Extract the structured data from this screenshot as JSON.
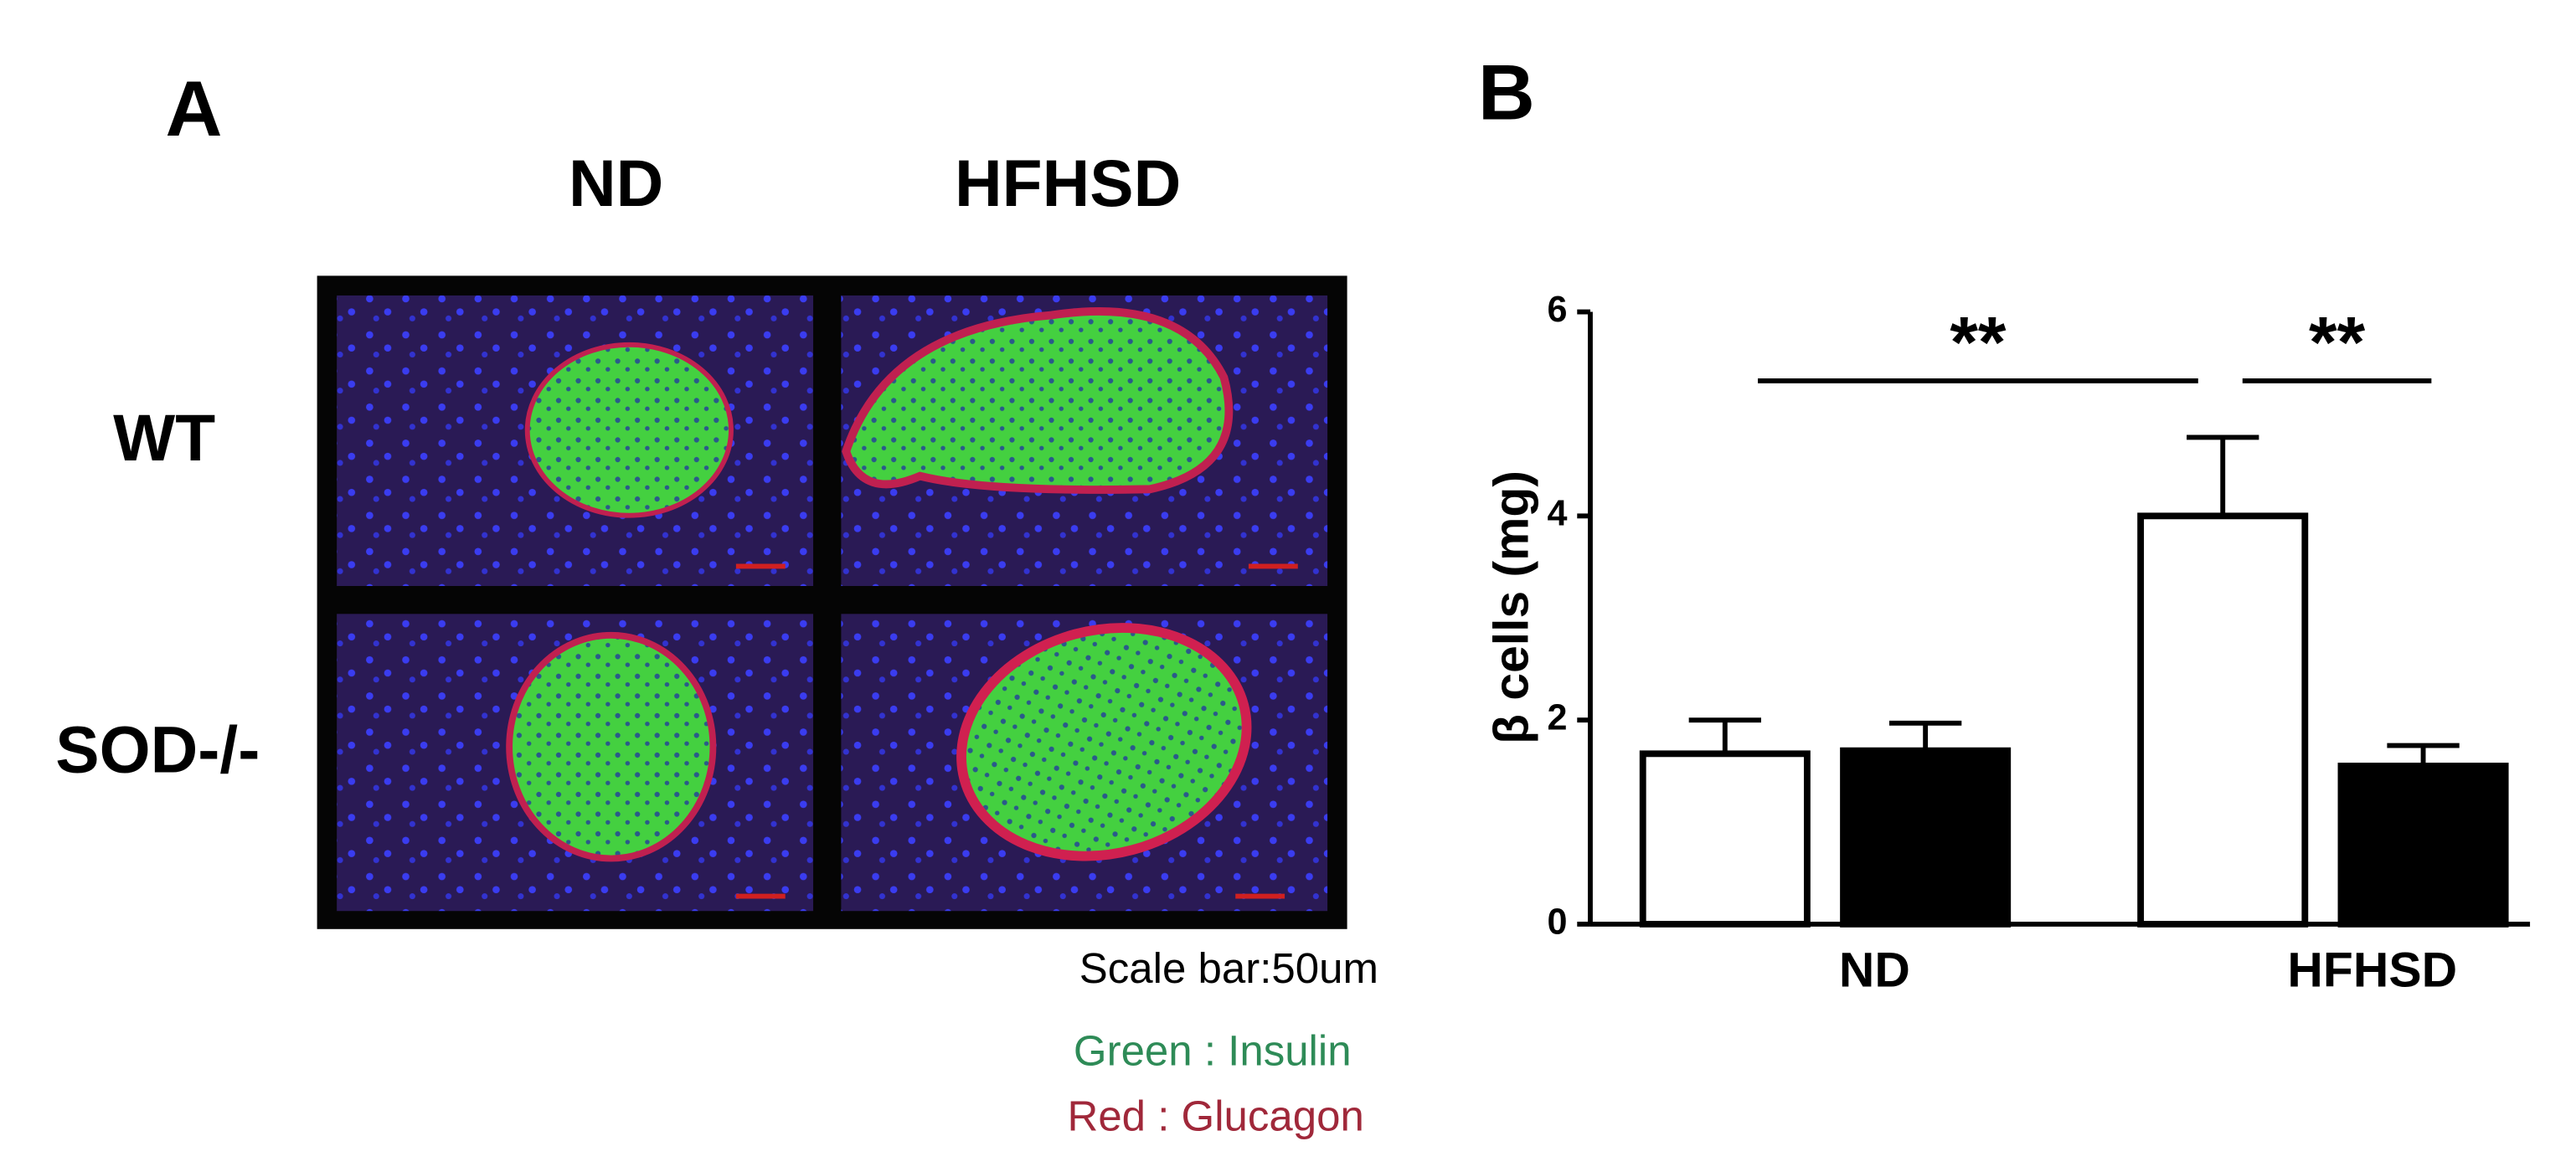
{
  "panel_a": {
    "letter": "A",
    "columns": [
      "ND",
      "HFHSD"
    ],
    "rows": [
      "WT",
      "SOD-/-"
    ],
    "scale_note": "Scale bar:50um",
    "legend": [
      "Green : Insulin",
      "Red : Glucagon"
    ]
  },
  "chart_data": {
    "type": "bar",
    "letter": "B",
    "ylabel": "β cells (mg)",
    "categories": [
      "ND",
      "HFHSD"
    ],
    "series": [
      {
        "color": "#ffffff",
        "values": [
          1.67,
          4.0
        ],
        "errors": [
          0.33,
          0.77
        ]
      },
      {
        "color": "#000000",
        "values": [
          1.7,
          1.55
        ],
        "errors": [
          0.27,
          0.2
        ]
      }
    ],
    "ylim": [
      0,
      6
    ],
    "yticks": [
      0,
      2,
      4,
      6
    ],
    "annotations": [
      "**",
      "**"
    ]
  }
}
